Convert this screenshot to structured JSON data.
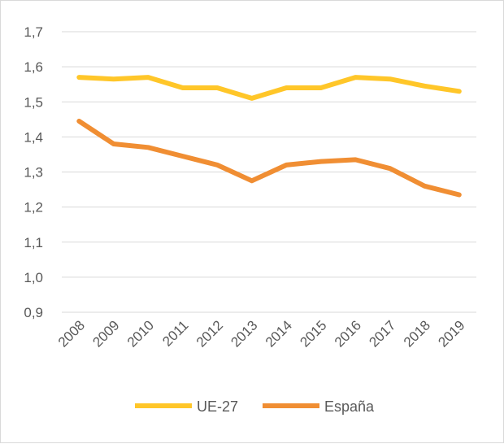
{
  "chart_data": {
    "type": "line",
    "title": "",
    "xlabel": "",
    "ylabel": "",
    "categories": [
      "2008",
      "2009",
      "2010",
      "2011",
      "2012",
      "2013",
      "2014",
      "2015",
      "2016",
      "2017",
      "2018",
      "2019"
    ],
    "ylim": [
      0.9,
      1.7
    ],
    "yticks": [
      0.9,
      1.0,
      1.1,
      1.2,
      1.3,
      1.4,
      1.5,
      1.6,
      1.7
    ],
    "ytick_labels": [
      "0,9",
      "1,0",
      "1,1",
      "1,2",
      "1,3",
      "1,4",
      "1,5",
      "1,6",
      "1,7"
    ],
    "grid": true,
    "legend_position": "bottom",
    "series": [
      {
        "name": "UE-27",
        "color": "#FFC629",
        "values": [
          1.57,
          1.565,
          1.57,
          1.54,
          1.54,
          1.51,
          1.54,
          1.54,
          1.57,
          1.565,
          1.545,
          1.53
        ]
      },
      {
        "name": "España",
        "color": "#F08E33",
        "values": [
          1.445,
          1.38,
          1.37,
          1.345,
          1.32,
          1.275,
          1.32,
          1.33,
          1.335,
          1.31,
          1.26,
          1.235
        ]
      }
    ]
  }
}
